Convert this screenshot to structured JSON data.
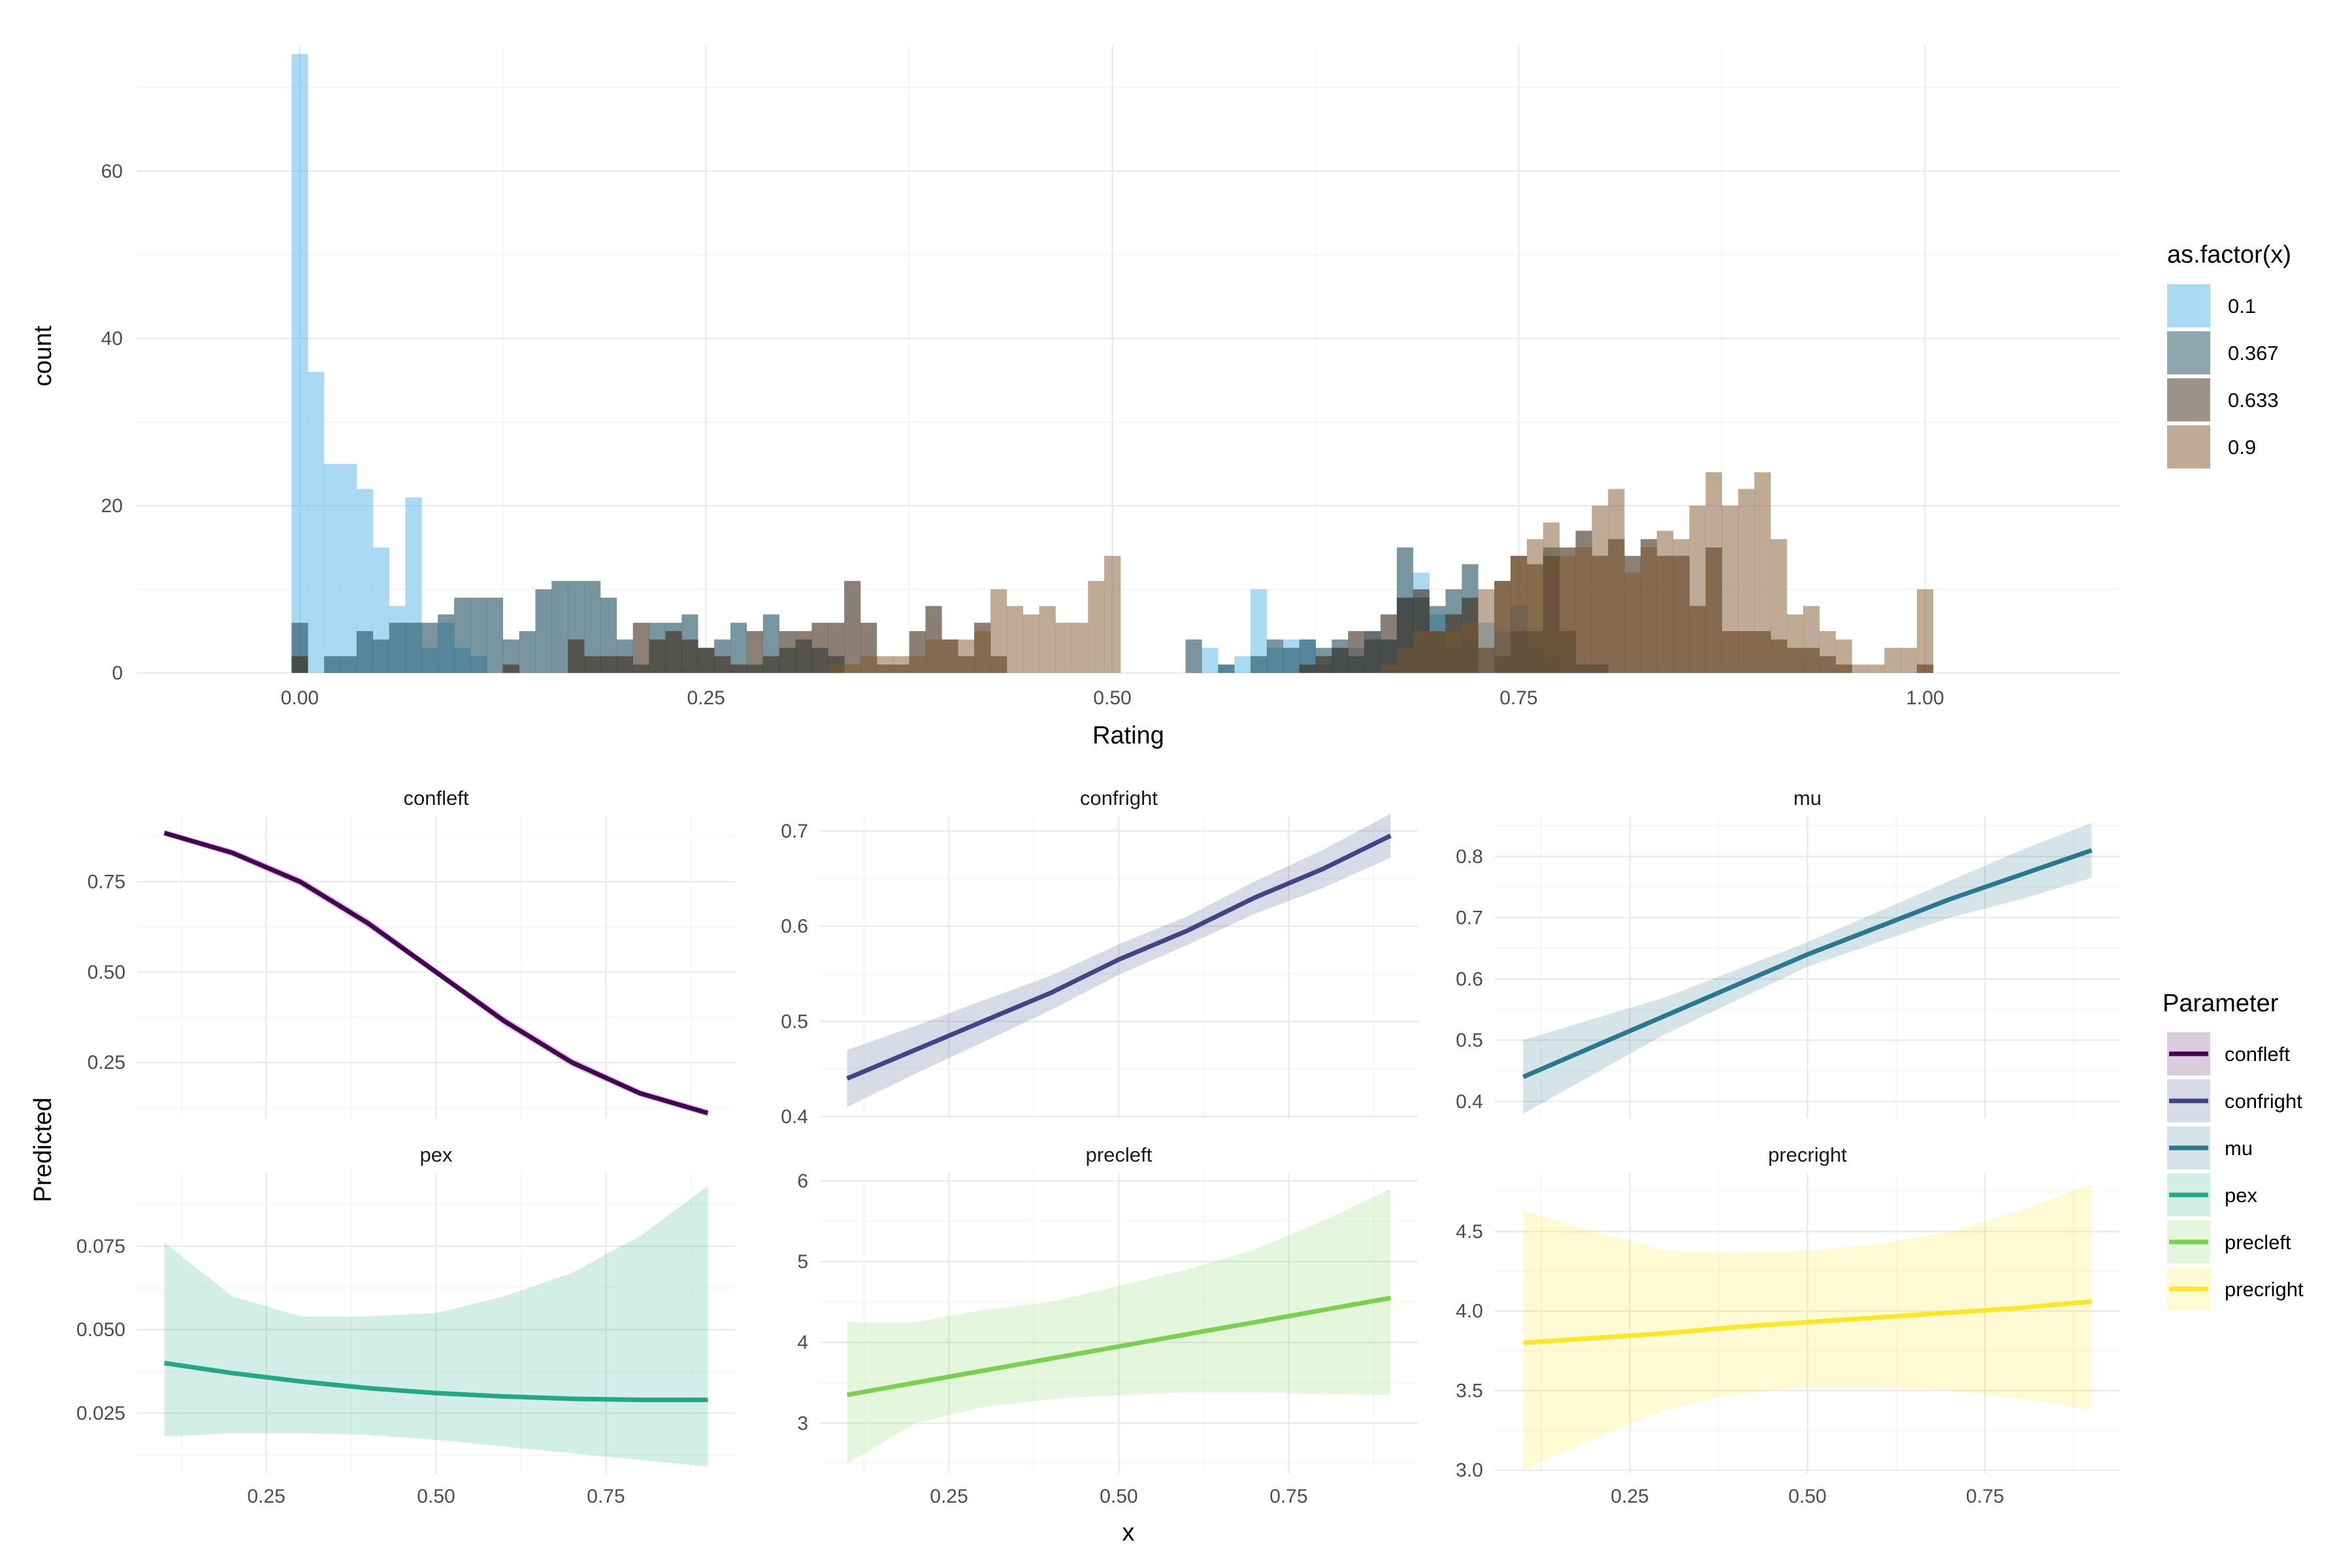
{
  "chart_data": [
    {
      "type": "histogram",
      "xlabel": "Rating",
      "ylabel": "count",
      "xlim": [
        -0.1,
        1.12
      ],
      "ylim": [
        0,
        75
      ],
      "x_ticks": [
        "0.00",
        "0.25",
        "0.50",
        "0.75",
        "1.00"
      ],
      "y_ticks": [
        "0",
        "20",
        "40",
        "60"
      ],
      "grid": true,
      "bin_width": 0.01,
      "bin_start": -0.005,
      "legend": {
        "title": "as.factor(x)",
        "position": "right",
        "entries": [
          {
            "label": "0.1",
            "color": "#56B4E9"
          },
          {
            "label": "0.367",
            "color": "#1F4E5F"
          },
          {
            "label": "0.633",
            "color": "#3D2818"
          },
          {
            "label": "0.9",
            "color": "#80552B"
          }
        ]
      },
      "series": [
        {
          "name": "0.1",
          "color": "#56B4E9",
          "opacity": 0.5,
          "counts": [
            74,
            36,
            25,
            25,
            22,
            15,
            8,
            21,
            3,
            6,
            3,
            2,
            0,
            0,
            0,
            0,
            0,
            0,
            0,
            0,
            0,
            0,
            0,
            0,
            0,
            0,
            0,
            0,
            0,
            0,
            0,
            0,
            0,
            0,
            0,
            0,
            0,
            0,
            0,
            0,
            0,
            0,
            0,
            0,
            0,
            0,
            0,
            0,
            0,
            0,
            0,
            0,
            0,
            0,
            0,
            0,
            3,
            1,
            2,
            10,
            3,
            4,
            4,
            1,
            3,
            3,
            5,
            4,
            9,
            12,
            7,
            3,
            4,
            6,
            5,
            8,
            3,
            2,
            0,
            0,
            0,
            0,
            0,
            0,
            0,
            0,
            0,
            0,
            0,
            0,
            0,
            0,
            0,
            0,
            0,
            0,
            0,
            0,
            0,
            0,
            0
          ]
        },
        {
          "name": "0.367",
          "color": "#1F4E5F",
          "opacity": 0.6,
          "counts": [
            6,
            0,
            2,
            2,
            5,
            4,
            6,
            6,
            6,
            7,
            9,
            9,
            9,
            4,
            5,
            10,
            11,
            11,
            11,
            9,
            4,
            1,
            6,
            6,
            7,
            3,
            4,
            6,
            1,
            7,
            3,
            4,
            3,
            2,
            0,
            0,
            0,
            0,
            0,
            0,
            0,
            0,
            0,
            0,
            0,
            0,
            0,
            0,
            0,
            0,
            0,
            0,
            0,
            0,
            0,
            4,
            0,
            1,
            0,
            2,
            4,
            3,
            4,
            3,
            4,
            2,
            4,
            4,
            15,
            9,
            8,
            10,
            13,
            0,
            2,
            5,
            5,
            15,
            5,
            1,
            1,
            0,
            0,
            0,
            0,
            0,
            0,
            0,
            0,
            0,
            0,
            0,
            0,
            0,
            0,
            0,
            0,
            0,
            0,
            0,
            0
          ]
        },
        {
          "name": "0.633",
          "color": "#3D2818",
          "opacity": 0.6,
          "counts": [
            2,
            0,
            0,
            0,
            0,
            0,
            0,
            0,
            0,
            0,
            0,
            0,
            0,
            1,
            0,
            0,
            0,
            4,
            2,
            2,
            2,
            6,
            4,
            5,
            4,
            3,
            2,
            1,
            5,
            2,
            5,
            5,
            6,
            6,
            11,
            6,
            1,
            1,
            5,
            8,
            4,
            2,
            6,
            2,
            0,
            0,
            0,
            0,
            0,
            0,
            0,
            0,
            0,
            0,
            0,
            0,
            0,
            0,
            0,
            0,
            0,
            0,
            1,
            2,
            3,
            5,
            5,
            7,
            9,
            10,
            5,
            7,
            9,
            3,
            11,
            14,
            13,
            14,
            15,
            17,
            14,
            16,
            14,
            16,
            14,
            14,
            8,
            15,
            5,
            5,
            5,
            4,
            3,
            3,
            2,
            1,
            0,
            0,
            0,
            0,
            1
          ]
        },
        {
          "name": "0.9",
          "color": "#80552B",
          "opacity": 0.5,
          "counts": [
            0,
            0,
            0,
            0,
            0,
            0,
            0,
            0,
            0,
            0,
            0,
            0,
            0,
            0,
            0,
            0,
            0,
            0,
            0,
            0,
            0,
            0,
            0,
            0,
            0,
            0,
            0,
            0,
            0,
            0,
            0,
            0,
            0,
            1,
            1,
            2,
            2,
            2,
            2,
            4,
            4,
            4,
            5,
            10,
            8,
            7,
            8,
            6,
            6,
            11,
            14,
            0,
            0,
            0,
            0,
            0,
            0,
            0,
            0,
            0,
            0,
            0,
            0,
            0,
            0,
            0,
            0,
            1,
            3,
            5,
            5,
            5,
            6,
            10,
            11,
            14,
            16,
            18,
            14,
            15,
            20,
            22,
            12,
            15,
            17,
            16,
            20,
            24,
            20,
            22,
            24,
            16,
            7,
            8,
            5,
            4,
            1,
            1,
            3,
            3,
            10
          ]
        }
      ]
    },
    {
      "type": "line",
      "facets": true,
      "xlabel": "x",
      "ylabel": "Predicted",
      "x_ticks": [
        "0.25",
        "0.50",
        "0.75"
      ],
      "xlim": [
        0.06,
        0.94
      ],
      "legend": {
        "title": "Parameter",
        "position": "right",
        "entries": [
          {
            "label": "confleft",
            "color": "#440154"
          },
          {
            "label": "confright",
            "color": "#414487"
          },
          {
            "label": "mu",
            "color": "#2A788E"
          },
          {
            "label": "pex",
            "color": "#22A884"
          },
          {
            "label": "precleft",
            "color": "#7AD151"
          },
          {
            "label": "precright",
            "color": "#FDE725"
          }
        ]
      },
      "panels": [
        {
          "title": "confleft",
          "color": "#440154",
          "ylim": [
            0.095,
            0.93
          ],
          "y_ticks": [
            "0.25",
            "0.50",
            "0.75"
          ],
          "x": [
            0.1,
            0.2,
            0.3,
            0.4,
            0.5,
            0.6,
            0.7,
            0.8,
            0.9
          ],
          "y": [
            0.885,
            0.83,
            0.75,
            0.635,
            0.5,
            0.365,
            0.25,
            0.165,
            0.11
          ],
          "lower": [
            0.877,
            0.82,
            0.738,
            0.622,
            0.49,
            0.352,
            0.238,
            0.155,
            0.1
          ],
          "upper": [
            0.893,
            0.84,
            0.762,
            0.648,
            0.51,
            0.378,
            0.262,
            0.175,
            0.12
          ]
        },
        {
          "title": "confright",
          "color": "#414487",
          "ylim": [
            0.398,
            0.715
          ],
          "y_ticks": [
            "0.4",
            "0.5",
            "0.6",
            "0.7"
          ],
          "x": [
            0.1,
            0.2,
            0.3,
            0.4,
            0.5,
            0.6,
            0.7,
            0.8,
            0.9
          ],
          "y": [
            0.44,
            0.47,
            0.5,
            0.53,
            0.565,
            0.595,
            0.63,
            0.66,
            0.695
          ],
          "lower": [
            0.41,
            0.445,
            0.478,
            0.512,
            0.549,
            0.58,
            0.613,
            0.64,
            0.672
          ],
          "upper": [
            0.47,
            0.495,
            0.522,
            0.548,
            0.581,
            0.61,
            0.647,
            0.68,
            0.718
          ]
        },
        {
          "title": "mu",
          "color": "#2A788E",
          "ylim": [
            0.372,
            0.865
          ],
          "y_ticks": [
            "0.4",
            "0.5",
            "0.6",
            "0.7",
            "0.8"
          ],
          "x": [
            0.1,
            0.2,
            0.3,
            0.4,
            0.5,
            0.6,
            0.7,
            0.8,
            0.9
          ],
          "y": [
            0.44,
            0.49,
            0.54,
            0.59,
            0.64,
            0.685,
            0.73,
            0.77,
            0.81
          ],
          "lower": [
            0.38,
            0.445,
            0.51,
            0.565,
            0.62,
            0.66,
            0.7,
            0.73,
            0.765
          ],
          "upper": [
            0.5,
            0.535,
            0.57,
            0.615,
            0.66,
            0.71,
            0.76,
            0.81,
            0.855
          ]
        },
        {
          "title": "pex",
          "color": "#22A884",
          "ylim": [
            0.007,
            0.097
          ],
          "y_ticks": [
            "0.025",
            "0.050",
            "0.075"
          ],
          "x": [
            0.1,
            0.2,
            0.3,
            0.4,
            0.5,
            0.6,
            0.7,
            0.8,
            0.9
          ],
          "y": [
            0.04,
            0.037,
            0.0345,
            0.0325,
            0.031,
            0.03,
            0.0293,
            0.029,
            0.029
          ],
          "lower": [
            0.018,
            0.019,
            0.019,
            0.0185,
            0.017,
            0.015,
            0.013,
            0.011,
            0.009
          ],
          "upper": [
            0.076,
            0.06,
            0.054,
            0.054,
            0.055,
            0.06,
            0.067,
            0.078,
            0.093
          ]
        },
        {
          "title": "precleft",
          "color": "#7AD151",
          "ylim": [
            2.38,
            6.1
          ],
          "y_ticks": [
            "3",
            "4",
            "5",
            "6"
          ],
          "x": [
            0.1,
            0.2,
            0.3,
            0.4,
            0.5,
            0.6,
            0.7,
            0.8,
            0.9
          ],
          "y": [
            3.35,
            3.5,
            3.65,
            3.8,
            3.95,
            4.1,
            4.25,
            4.4,
            4.55
          ],
          "lower": [
            2.5,
            3.0,
            3.2,
            3.3,
            3.35,
            3.38,
            3.38,
            3.36,
            3.35
          ],
          "upper": [
            4.25,
            4.25,
            4.4,
            4.5,
            4.7,
            4.9,
            5.15,
            5.5,
            5.9
          ]
        },
        {
          "title": "precright",
          "color": "#FDE725",
          "ylim": [
            2.98,
            4.87
          ],
          "y_ticks": [
            "3.0",
            "3.5",
            "4.0",
            "4.5"
          ],
          "x": [
            0.1,
            0.2,
            0.3,
            0.4,
            0.5,
            0.6,
            0.7,
            0.8,
            0.9
          ],
          "y": [
            3.8,
            3.83,
            3.86,
            3.9,
            3.93,
            3.96,
            3.99,
            4.02,
            4.06
          ],
          "lower": [
            3.0,
            3.2,
            3.38,
            3.48,
            3.52,
            3.52,
            3.5,
            3.45,
            3.38
          ],
          "upper": [
            4.63,
            4.5,
            4.38,
            4.37,
            4.38,
            4.42,
            4.5,
            4.63,
            4.8
          ]
        }
      ]
    }
  ]
}
